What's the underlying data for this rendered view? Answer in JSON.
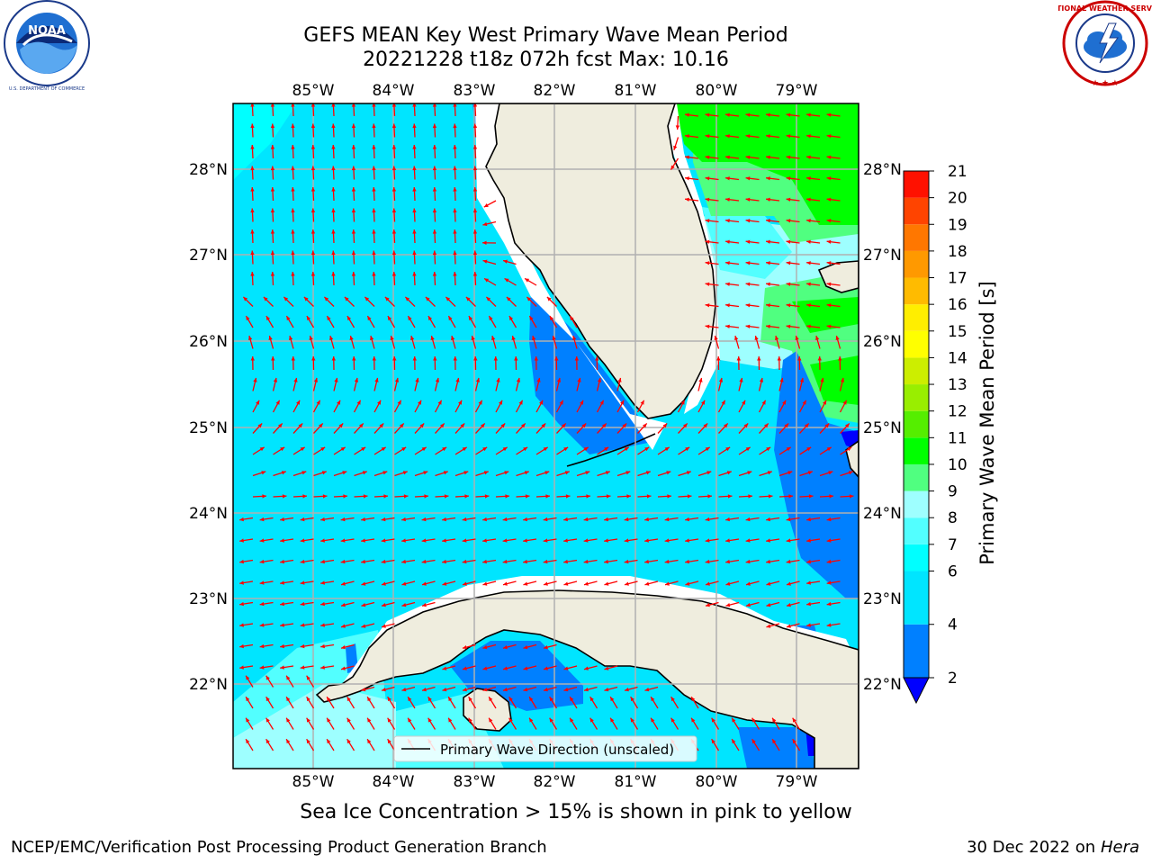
{
  "title": {
    "line1": "GEFS MEAN Key West Primary Wave Mean Period",
    "line2": "20221228 t18z 072h fcst   Max: 10.16"
  },
  "logos": {
    "left": "noaa-logo",
    "left_text": "NOAA",
    "left_ring_text": "NATIONAL OCEANIC AND ATMOSPHERIC ADMINISTRATION",
    "left_bottom_text": "U.S. DEPARTMENT OF COMMERCE",
    "right": "nws-logo",
    "right_ring_text": "NATIONAL WEATHER SERVICE"
  },
  "map": {
    "lon_labels": [
      "85°W",
      "84°W",
      "83°W",
      "82°W",
      "81°W",
      "80°W",
      "79°W"
    ],
    "lat_labels": [
      "28°N",
      "27°N",
      "26°N",
      "25°N",
      "24°N",
      "23°N",
      "22°N"
    ],
    "legend_label": "Primary Wave Direction (unscaled)",
    "arrow_color": "#ff0000",
    "land_color": "#efedde"
  },
  "colorbar": {
    "label": "Primary Wave Mean Period [s]",
    "ticks": [
      "2",
      "4",
      "6",
      "7",
      "8",
      "9",
      "10",
      "11",
      "12",
      "13",
      "14",
      "15",
      "16",
      "17",
      "18",
      "19",
      "20",
      "21"
    ],
    "levels": [
      {
        "from": 2,
        "to": 4,
        "color": "#0080ff"
      },
      {
        "from": 4,
        "to": 6,
        "color": "#00e5ff"
      },
      {
        "from": 6,
        "to": 7,
        "color": "#00ffff"
      },
      {
        "from": 7,
        "to": 8,
        "color": "#52ffff"
      },
      {
        "from": 8,
        "to": 9,
        "color": "#9effff"
      },
      {
        "from": 9,
        "to": 10,
        "color": "#50ff80"
      },
      {
        "from": 10,
        "to": 11,
        "color": "#00ff00"
      },
      {
        "from": 11,
        "to": 12,
        "color": "#55ee00"
      },
      {
        "from": 12,
        "to": 13,
        "color": "#99ee00"
      },
      {
        "from": 13,
        "to": 14,
        "color": "#ccee00"
      },
      {
        "from": 14,
        "to": 15,
        "color": "#ffff00"
      },
      {
        "from": 15,
        "to": 16,
        "color": "#ffee00"
      },
      {
        "from": 16,
        "to": 17,
        "color": "#ffbb00"
      },
      {
        "from": 17,
        "to": 18,
        "color": "#ff9900"
      },
      {
        "from": 18,
        "to": 19,
        "color": "#ff7700"
      },
      {
        "from": 19,
        "to": 20,
        "color": "#ff4400"
      },
      {
        "from": 20,
        "to": 21,
        "color": "#ff1100"
      }
    ],
    "extend_min_color": "#0000ff"
  },
  "notes": {
    "ice": "Sea Ice Concentration > 15% is shown in pink to yellow",
    "footer_left": "NCEP/EMC/Verification Post Processing Product Generation Branch",
    "footer_date": "30 Dec 2022 on",
    "footer_host": "Hera"
  }
}
